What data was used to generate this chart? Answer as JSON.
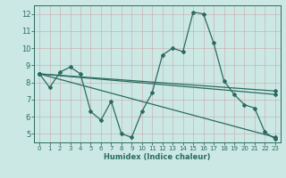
{
  "xlabel": "Humidex (Indice chaleur)",
  "ylabel": "",
  "bg_color": "#cce8e4",
  "grid_color": "#b0d4d0",
  "line_color": "#2a6b60",
  "xlim": [
    -0.5,
    23.5
  ],
  "ylim": [
    4.5,
    12.5
  ],
  "xticks": [
    0,
    1,
    2,
    3,
    4,
    5,
    6,
    7,
    8,
    9,
    10,
    11,
    12,
    13,
    14,
    15,
    16,
    17,
    18,
    19,
    20,
    21,
    22,
    23
  ],
  "yticks": [
    5,
    6,
    7,
    8,
    9,
    10,
    11,
    12
  ],
  "series": [
    {
      "x": [
        0,
        1,
        2,
        3,
        4,
        5,
        6,
        7,
        8,
        9,
        10,
        11,
        12,
        13,
        14,
        15,
        16,
        17,
        18,
        19,
        20,
        21,
        22,
        23
      ],
      "y": [
        8.5,
        7.7,
        8.6,
        8.9,
        8.5,
        6.3,
        5.8,
        6.9,
        5.0,
        4.8,
        6.3,
        7.4,
        9.6,
        10.0,
        9.8,
        12.1,
        12.0,
        10.3,
        8.1,
        7.3,
        6.7,
        6.5,
        5.1,
        4.7
      ]
    },
    {
      "x": [
        0,
        23
      ],
      "y": [
        8.5,
        7.5
      ]
    },
    {
      "x": [
        0,
        23
      ],
      "y": [
        8.5,
        7.3
      ]
    },
    {
      "x": [
        0,
        23
      ],
      "y": [
        8.5,
        4.8
      ]
    }
  ]
}
